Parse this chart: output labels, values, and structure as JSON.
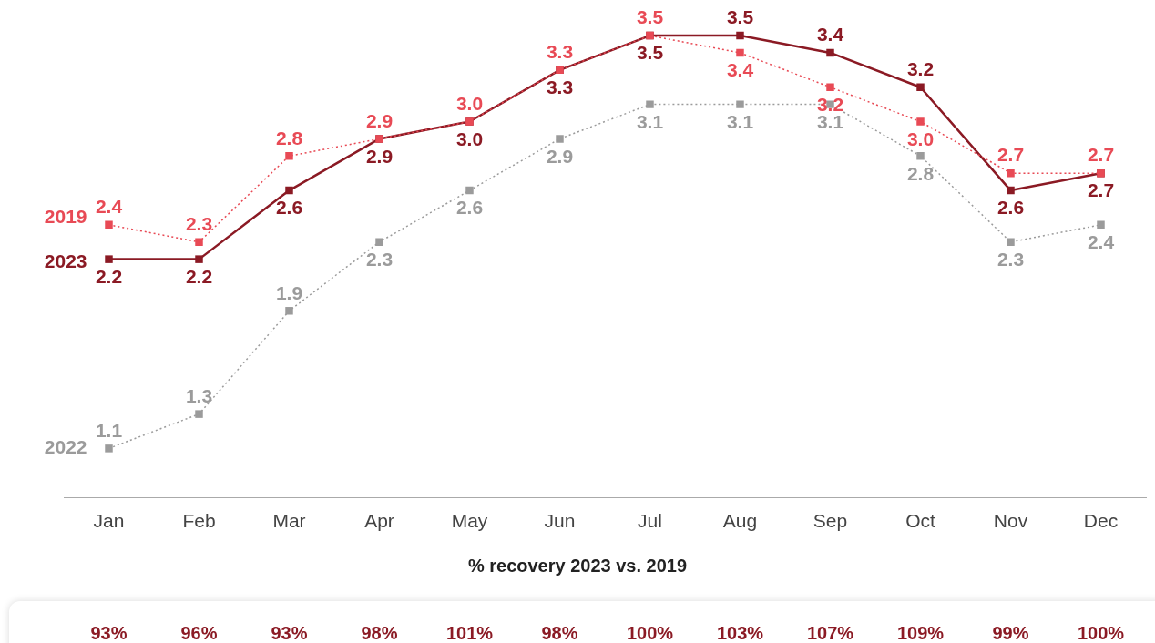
{
  "chart_data": {
    "type": "line",
    "categories": [
      "Jan",
      "Feb",
      "Mar",
      "Apr",
      "May",
      "Jun",
      "Jul",
      "Aug",
      "Sep",
      "Oct",
      "Nov",
      "Dec"
    ],
    "series": [
      {
        "name": "2019",
        "color": "#e84a55",
        "line_style": "dotted",
        "values": [
          2.4,
          2.3,
          2.8,
          2.9,
          3.0,
          3.3,
          3.5,
          3.4,
          3.2,
          3.0,
          2.7,
          2.7
        ],
        "value_labels": [
          "2.4",
          "2.3",
          "2.8",
          "2.9",
          "3.0",
          "3.3",
          "3.5",
          "3.4",
          "3.2",
          "3.0",
          "2.7",
          "2.7"
        ]
      },
      {
        "name": "2023",
        "color": "#8b1a24",
        "line_style": "solid",
        "values": [
          2.2,
          2.2,
          2.6,
          2.9,
          3.0,
          3.3,
          3.5,
          3.5,
          3.4,
          3.2,
          2.6,
          2.7
        ],
        "value_labels": [
          "2.2",
          "2.2",
          "2.6",
          "2.9",
          "3.0",
          "3.3",
          "3.5",
          "3.5",
          "3.4",
          "3.2",
          "2.6",
          "2.7"
        ]
      },
      {
        "name": "2022",
        "color": "#9b9b9b",
        "line_style": "dotted",
        "values": [
          1.1,
          1.3,
          1.9,
          2.3,
          2.6,
          2.9,
          3.1,
          3.1,
          3.1,
          2.8,
          2.3,
          2.4
        ],
        "value_labels": [
          "1.1",
          "1.3",
          "1.9",
          "2.3",
          "2.6",
          "2.9",
          "3.1",
          "3.1",
          "3.1",
          "2.8",
          "2.3",
          "2.4"
        ]
      }
    ],
    "marker": "square",
    "grid": false,
    "legend": false,
    "tick_labels": "x",
    "annotations": [
      "% recovery 2023 vs. 2019",
      "93%",
      "96%",
      "93%",
      "98%",
      "101%",
      "98%",
      "100%",
      "103%",
      "107%",
      "109%",
      "99%",
      "100%"
    ]
  }
}
